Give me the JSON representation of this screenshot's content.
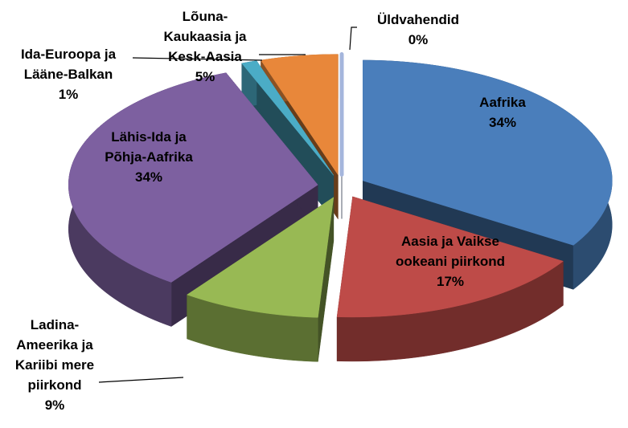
{
  "chart_data": {
    "type": "pie",
    "categories": [
      "Aafrika",
      "Aasia ja Vaikse ookeani piirkond",
      "Ladina-Ameerika ja Kariibi mere piirkond",
      "Lähis-Ida ja Põhja-Aafrika",
      "Ida-Euroopa ja Lääne-Balkan",
      "Lõuna-Kaukaasia ja Kesk-Aasia",
      "Üldvahendid"
    ],
    "values": [
      34,
      17,
      9,
      34,
      1,
      5,
      0
    ],
    "value_labels": [
      "34%",
      "17%",
      "9%",
      "34%",
      "1%",
      "5%",
      "0%"
    ],
    "colors": [
      "#4a7ebb",
      "#be4b48",
      "#98b954",
      "#7d60a0",
      "#4bacc6",
      "#e8873a",
      "#a5b6dc"
    ]
  }
}
